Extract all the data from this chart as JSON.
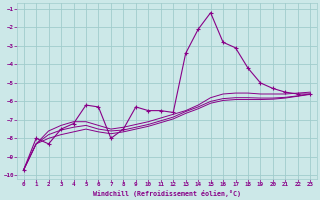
{
  "xlabel": "Windchill (Refroidissement éolien,°C)",
  "background_color": "#cce8e8",
  "grid_color": "#a0cccc",
  "line_color": "#880088",
  "xlim": [
    -0.5,
    23.5
  ],
  "ylim": [
    -10.2,
    -0.7
  ],
  "xticks": [
    0,
    1,
    2,
    3,
    4,
    5,
    6,
    7,
    8,
    9,
    10,
    11,
    12,
    13,
    14,
    15,
    16,
    17,
    18,
    19,
    20,
    21,
    22,
    23
  ],
  "yticks": [
    -10,
    -9,
    -8,
    -7,
    -6,
    -5,
    -4,
    -3,
    -2,
    -1
  ],
  "series1": [
    [
      0,
      -9.7
    ],
    [
      1,
      -8.0
    ],
    [
      2,
      -8.3
    ],
    [
      3,
      -7.5
    ],
    [
      4,
      -7.2
    ],
    [
      5,
      -6.2
    ],
    [
      6,
      -6.3
    ],
    [
      7,
      -8.0
    ],
    [
      8,
      -7.5
    ],
    [
      9,
      -6.3
    ],
    [
      10,
      -6.5
    ],
    [
      11,
      -6.5
    ],
    [
      12,
      -6.6
    ],
    [
      13,
      -3.4
    ],
    [
      14,
      -2.1
    ],
    [
      15,
      -1.2
    ],
    [
      16,
      -2.8
    ],
    [
      17,
      -3.1
    ],
    [
      18,
      -4.2
    ],
    [
      19,
      -5.0
    ],
    [
      20,
      -5.3
    ],
    [
      21,
      -5.5
    ],
    [
      22,
      -5.6
    ],
    [
      23,
      -5.6
    ]
  ],
  "series2": [
    [
      0,
      -9.7
    ],
    [
      1,
      -8.3
    ],
    [
      2,
      -7.6
    ],
    [
      3,
      -7.3
    ],
    [
      4,
      -7.1
    ],
    [
      5,
      -7.1
    ],
    [
      6,
      -7.3
    ],
    [
      7,
      -7.5
    ],
    [
      8,
      -7.4
    ],
    [
      9,
      -7.25
    ],
    [
      10,
      -7.1
    ],
    [
      11,
      -6.9
    ],
    [
      12,
      -6.7
    ],
    [
      13,
      -6.5
    ],
    [
      14,
      -6.2
    ],
    [
      15,
      -5.8
    ],
    [
      16,
      -5.6
    ],
    [
      17,
      -5.55
    ],
    [
      18,
      -5.55
    ],
    [
      19,
      -5.6
    ],
    [
      20,
      -5.6
    ],
    [
      21,
      -5.6
    ],
    [
      22,
      -5.55
    ],
    [
      23,
      -5.5
    ]
  ],
  "series3": [
    [
      0,
      -9.7
    ],
    [
      1,
      -8.3
    ],
    [
      2,
      -7.8
    ],
    [
      3,
      -7.55
    ],
    [
      4,
      -7.4
    ],
    [
      5,
      -7.3
    ],
    [
      6,
      -7.5
    ],
    [
      7,
      -7.6
    ],
    [
      8,
      -7.55
    ],
    [
      9,
      -7.4
    ],
    [
      10,
      -7.25
    ],
    [
      11,
      -7.05
    ],
    [
      12,
      -6.85
    ],
    [
      13,
      -6.55
    ],
    [
      14,
      -6.3
    ],
    [
      15,
      -6.0
    ],
    [
      16,
      -5.85
    ],
    [
      17,
      -5.8
    ],
    [
      18,
      -5.8
    ],
    [
      19,
      -5.82
    ],
    [
      20,
      -5.82
    ],
    [
      21,
      -5.78
    ],
    [
      22,
      -5.7
    ],
    [
      23,
      -5.6
    ]
  ],
  "series4": [
    [
      0,
      -9.7
    ],
    [
      1,
      -8.3
    ],
    [
      2,
      -8.0
    ],
    [
      3,
      -7.8
    ],
    [
      4,
      -7.65
    ],
    [
      5,
      -7.5
    ],
    [
      6,
      -7.65
    ],
    [
      7,
      -7.75
    ],
    [
      8,
      -7.65
    ],
    [
      9,
      -7.5
    ],
    [
      10,
      -7.35
    ],
    [
      11,
      -7.15
    ],
    [
      12,
      -6.95
    ],
    [
      13,
      -6.65
    ],
    [
      14,
      -6.4
    ],
    [
      15,
      -6.1
    ],
    [
      16,
      -5.95
    ],
    [
      17,
      -5.9
    ],
    [
      18,
      -5.9
    ],
    [
      19,
      -5.9
    ],
    [
      20,
      -5.88
    ],
    [
      21,
      -5.82
    ],
    [
      22,
      -5.72
    ],
    [
      23,
      -5.62
    ]
  ]
}
